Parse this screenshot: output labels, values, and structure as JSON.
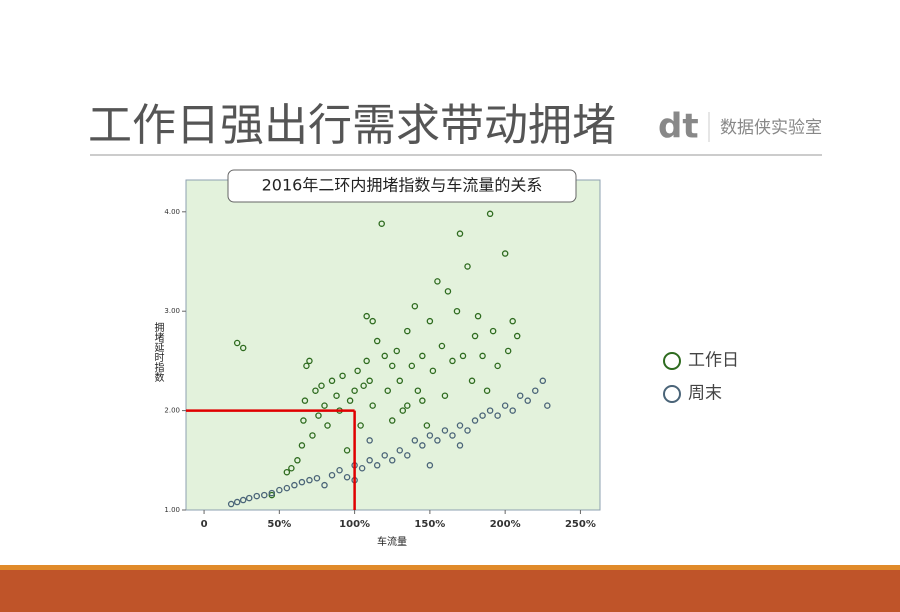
{
  "header": {
    "title": "工作日强出行需求带动拥堵",
    "logo": "dt",
    "brand": "数据侠实验室"
  },
  "chart_data": {
    "type": "scatter",
    "title": "2016年二环内拥堵指数与车流量的关系",
    "x_label": "车流量",
    "y_label": "拥堵延时指数",
    "xlim": [
      -12,
      263
    ],
    "ylim": [
      1,
      4.32
    ],
    "xticks": [
      0,
      {
        "value": 50,
        "label": "50%"
      },
      {
        "value": 100,
        "label": "100%"
      },
      {
        "value": 150,
        "label": "150%"
      },
      {
        "value": 200,
        "label": "200%"
      },
      {
        "value": 250,
        "label": "250%"
      }
    ],
    "yticks": [
      {
        "value": 1,
        "label": "1.00"
      },
      {
        "value": 2,
        "label": "2.00"
      },
      {
        "value": 3,
        "label": "3.00"
      },
      {
        "value": 4,
        "label": "4.00"
      }
    ],
    "reference_lines": {
      "x": 100,
      "y": 2,
      "color": "#e00000"
    },
    "series": [
      {
        "name": "工作日",
        "color": "#2e6b1f",
        "x": [
          22,
          26,
          45,
          55,
          58,
          62,
          65,
          66,
          67,
          68,
          70,
          72,
          74,
          76,
          78,
          80,
          82,
          85,
          88,
          90,
          92,
          95,
          97,
          100,
          102,
          104,
          106,
          108,
          110,
          112,
          115,
          108,
          112,
          118,
          120,
          122,
          125,
          128,
          130,
          132,
          135,
          138,
          140,
          142,
          145,
          148,
          150,
          152,
          155,
          158,
          160,
          162,
          165,
          168,
          170,
          172,
          175,
          178,
          180,
          182,
          185,
          188,
          190,
          192,
          195,
          200,
          202,
          205,
          208,
          145,
          125,
          135
        ],
        "values": [
          2.68,
          2.63,
          1.15,
          1.38,
          1.42,
          1.5,
          1.65,
          1.9,
          2.1,
          2.45,
          2.5,
          1.75,
          2.2,
          1.95,
          2.25,
          2.05,
          1.85,
          2.3,
          2.15,
          2.0,
          2.35,
          1.6,
          2.1,
          2.2,
          2.4,
          1.85,
          2.25,
          2.5,
          2.3,
          2.05,
          2.7,
          2.95,
          2.9,
          3.88,
          2.55,
          2.2,
          2.45,
          2.6,
          2.3,
          2.0,
          2.8,
          2.45,
          3.05,
          2.2,
          2.55,
          1.85,
          2.9,
          2.4,
          3.3,
          2.65,
          2.15,
          3.2,
          2.5,
          3.0,
          3.78,
          2.55,
          3.45,
          2.3,
          2.75,
          2.95,
          2.55,
          2.2,
          3.98,
          2.8,
          2.45,
          3.58,
          2.6,
          2.9,
          2.75,
          2.1,
          1.9,
          2.05
        ]
      },
      {
        "name": "周末",
        "color": "#4a6478",
        "x": [
          18,
          22,
          26,
          30,
          35,
          40,
          45,
          50,
          55,
          60,
          65,
          70,
          75,
          80,
          85,
          90,
          95,
          100,
          105,
          110,
          115,
          120,
          125,
          130,
          135,
          140,
          145,
          150,
          155,
          160,
          165,
          170,
          175,
          180,
          185,
          190,
          195,
          200,
          205,
          210,
          215,
          220,
          225,
          228,
          100,
          150,
          170,
          110
        ],
        "values": [
          1.06,
          1.08,
          1.1,
          1.12,
          1.14,
          1.15,
          1.17,
          1.2,
          1.22,
          1.25,
          1.28,
          1.3,
          1.32,
          1.25,
          1.35,
          1.4,
          1.33,
          1.45,
          1.42,
          1.5,
          1.45,
          1.55,
          1.5,
          1.6,
          1.55,
          1.7,
          1.65,
          1.75,
          1.7,
          1.8,
          1.75,
          1.85,
          1.8,
          1.9,
          1.95,
          2.0,
          1.95,
          2.05,
          2.0,
          2.15,
          2.1,
          2.2,
          2.3,
          2.05,
          1.3,
          1.45,
          1.65,
          1.7
        ]
      }
    ]
  }
}
